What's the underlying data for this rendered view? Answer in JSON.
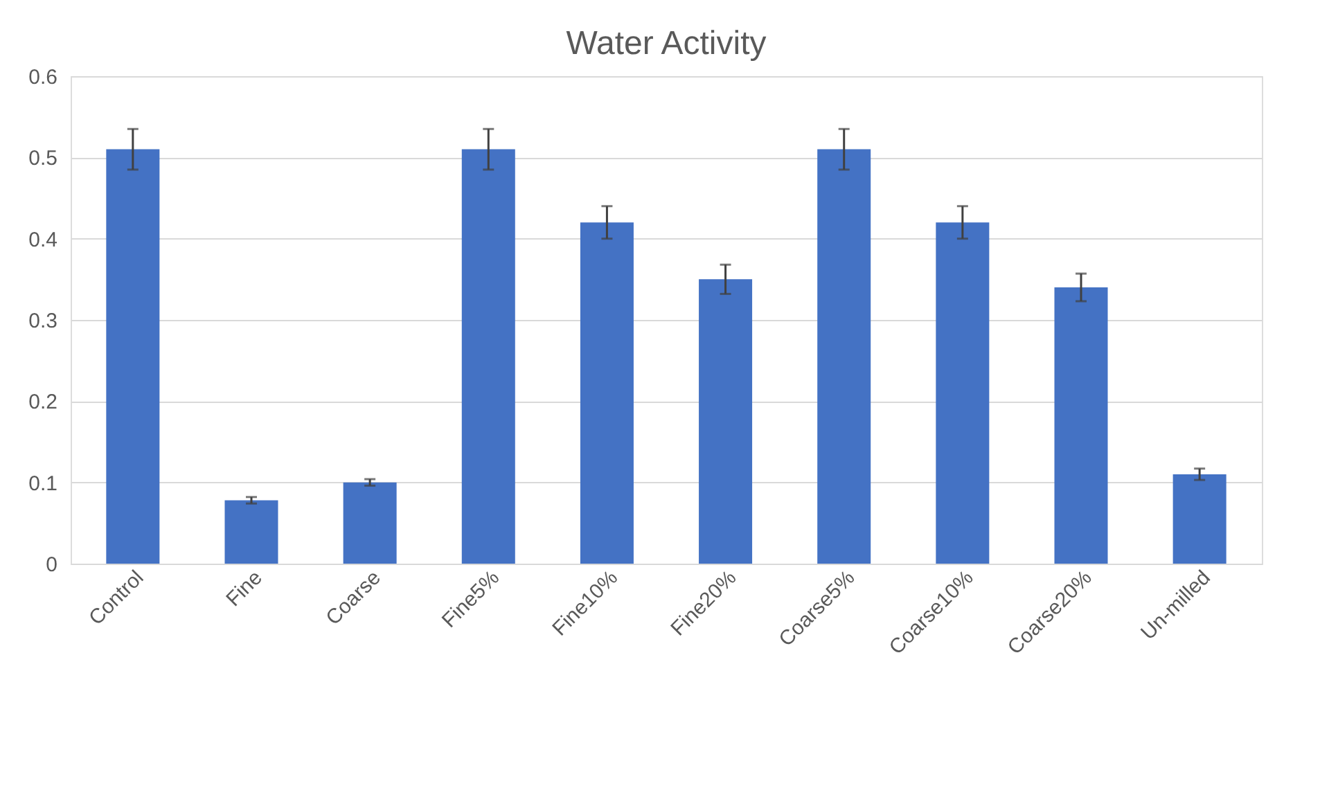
{
  "chart_data": {
    "type": "bar",
    "title": "Water Activity",
    "categories": [
      "Control",
      "Fine",
      "Coarse",
      "Fine5%",
      "Fine10%",
      "Fine20%",
      "Coarse5%",
      "Coarse10%",
      "Coarse20%",
      "Un-milled"
    ],
    "values": [
      0.51,
      0.078,
      0.1,
      0.51,
      0.42,
      0.35,
      0.51,
      0.42,
      0.34,
      0.11
    ],
    "errors": [
      0.025,
      0.004,
      0.004,
      0.025,
      0.02,
      0.018,
      0.025,
      0.02,
      0.017,
      0.007
    ],
    "color": "#4472c4",
    "ylim": [
      0,
      0.6
    ],
    "yticks": [
      0,
      0.1,
      0.2,
      0.3,
      0.4,
      0.5,
      0.6
    ],
    "grid": "y"
  }
}
